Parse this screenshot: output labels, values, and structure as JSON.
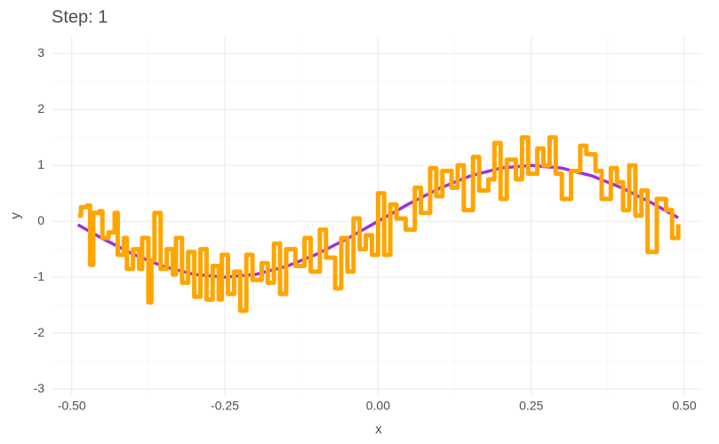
{
  "chart_data": {
    "type": "line",
    "title": "Step: 1",
    "x_label": "x",
    "y_label": "y",
    "xlim": [
      -0.533,
      0.529
    ],
    "ylim": [
      -3.11,
      3.29
    ],
    "xticks": [
      {
        "value": -0.5,
        "label": "-0.50"
      },
      {
        "value": -0.25,
        "label": "-0.25"
      },
      {
        "value": 0,
        "label": "0.00"
      },
      {
        "value": 0.25,
        "label": "0.25"
      },
      {
        "value": 0.5,
        "label": "0.50"
      }
    ],
    "yticks": [
      -3,
      -2,
      -1,
      0,
      1,
      2,
      3
    ],
    "x_minor_ticks": [
      -0.375,
      -0.125,
      0.125,
      0.375
    ],
    "y_minor_ticks": [
      -2.5,
      -1.5,
      -0.5,
      0.5,
      1.5,
      2.5
    ],
    "grid": true,
    "series": [
      {
        "color": "#9b30e0",
        "step": false,
        "x": [
          -0.49,
          -0.45,
          -0.4,
          -0.35,
          -0.3,
          -0.25,
          -0.2,
          -0.15,
          -0.1,
          -0.05,
          0,
          0.05,
          0.1,
          0.15,
          0.2,
          0.25,
          0.3,
          0.35,
          0.4,
          0.45,
          0.49
        ],
        "values": [
          -0.063,
          -0.309,
          -0.588,
          -0.809,
          -0.951,
          -1,
          -0.951,
          -0.809,
          -0.588,
          -0.309,
          0,
          0.309,
          0.588,
          0.809,
          0.951,
          1,
          0.951,
          0.809,
          0.588,
          0.309,
          0.063
        ]
      },
      {
        "color": "#ffa500",
        "step": true,
        "x": [
          -0.49,
          -0.485,
          -0.475,
          -0.47,
          -0.465,
          -0.455,
          -0.45,
          -0.44,
          -0.43,
          -0.425,
          -0.415,
          -0.41,
          -0.4,
          -0.39,
          -0.385,
          -0.375,
          -0.37,
          -0.365,
          -0.355,
          -0.345,
          -0.335,
          -0.33,
          -0.32,
          -0.31,
          -0.3,
          -0.29,
          -0.28,
          -0.27,
          -0.26,
          -0.255,
          -0.245,
          -0.235,
          -0.225,
          -0.215,
          -0.205,
          -0.19,
          -0.18,
          -0.17,
          -0.16,
          -0.15,
          -0.135,
          -0.12,
          -0.11,
          -0.095,
          -0.085,
          -0.07,
          -0.06,
          -0.05,
          -0.04,
          -0.03,
          -0.02,
          -0.01,
          0,
          0.01,
          0.02,
          0.03,
          0.045,
          0.06,
          0.07,
          0.085,
          0.095,
          0.105,
          0.12,
          0.13,
          0.14,
          0.155,
          0.165,
          0.18,
          0.19,
          0.2,
          0.21,
          0.225,
          0.235,
          0.245,
          0.26,
          0.27,
          0.28,
          0.29,
          0.3,
          0.315,
          0.33,
          0.34,
          0.355,
          0.365,
          0.38,
          0.39,
          0.4,
          0.41,
          0.42,
          0.43,
          0.44,
          0.455,
          0.47,
          0.48,
          0.49
        ],
        "values": [
          0.1,
          0.25,
          0.28,
          -0.78,
          0.15,
          0.18,
          -0.3,
          -0.2,
          0.15,
          -0.6,
          -0.3,
          -0.85,
          -0.5,
          -0.85,
          -0.3,
          -1.45,
          -0.7,
          0.15,
          -0.85,
          -0.5,
          -0.95,
          -0.3,
          -1.1,
          -0.55,
          -1.35,
          -0.5,
          -1.4,
          -0.8,
          -1.4,
          -0.6,
          -1.3,
          -0.9,
          -1.6,
          -0.6,
          -1.05,
          -0.75,
          -1.1,
          -0.4,
          -1.3,
          -0.5,
          -0.8,
          -0.3,
          -0.9,
          -0.15,
          -0.65,
          -1.2,
          -0.3,
          -0.9,
          0.05,
          -0.5,
          -0.25,
          -0.6,
          0.5,
          -0.6,
          0.3,
          0.05,
          -0.15,
          0.6,
          0.15,
          0.95,
          0.45,
          0.9,
          0.6,
          1.0,
          0.2,
          1.15,
          0.55,
          0.75,
          1.4,
          0.4,
          1.1,
          0.75,
          1.5,
          0.85,
          1.3,
          1.0,
          1.5,
          0.85,
          0.4,
          0.9,
          1.35,
          1.2,
          0.9,
          0.4,
          0.95,
          0.7,
          0.2,
          1.0,
          0.1,
          0.55,
          -0.55,
          0.4,
          0.2,
          -0.3,
          -0.05
        ]
      }
    ]
  }
}
